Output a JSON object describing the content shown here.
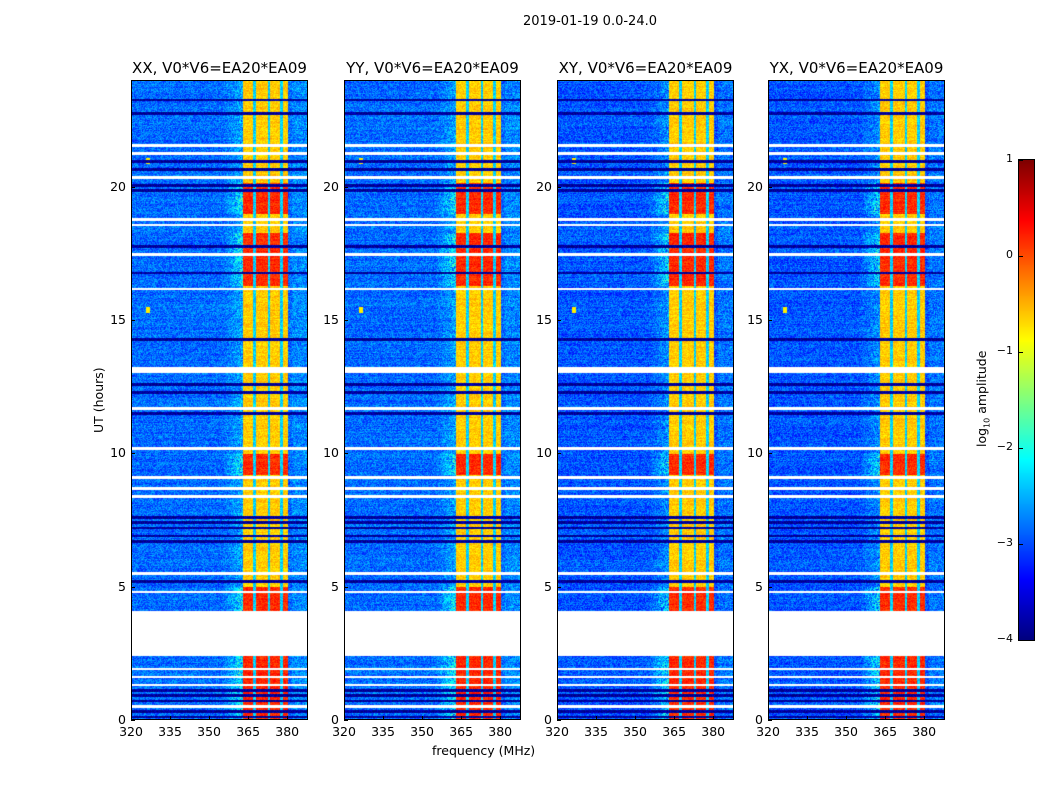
{
  "chart_data": {
    "type": "heatmap",
    "title": "2019-01-19 0.0-24.0",
    "xlabel": "frequency (MHz)",
    "ylabel": "UT (hours)",
    "xlim": [
      320,
      388
    ],
    "ylim": [
      0,
      24
    ],
    "xticks": [
      320,
      335,
      350,
      365,
      380
    ],
    "yticks": [
      0,
      5,
      10,
      15,
      20
    ],
    "panels": [
      {
        "title": "XX, V0*V6=EA20*EA09",
        "cross": false
      },
      {
        "title": "YY, V0*V6=EA20*EA09",
        "cross": false
      },
      {
        "title": "XY, V0*V6=EA20*EA09",
        "cross": true
      },
      {
        "title": "YX, V0*V6=EA20*EA09",
        "cross": true
      }
    ],
    "colorbar": {
      "label": "log10 amplitude",
      "colormap": "jet",
      "range": [
        -4,
        1
      ],
      "ticks": [
        "1",
        "0",
        "−1",
        "−2",
        "−3",
        "−4"
      ],
      "tick_values": [
        1,
        0,
        -1,
        -2,
        -3,
        -4
      ]
    },
    "features": {
      "bright_band_mhz": [
        363,
        380.5
      ],
      "band_notches_mhz": [
        367.5,
        373,
        378
      ],
      "no_data_hours": [
        [
          2.4,
          4.1
        ]
      ],
      "flagged_hours": [
        21.6,
        21.3,
        20.4,
        18.8,
        18.6,
        17.5,
        16.2,
        13.2,
        13.1,
        11.7,
        10.2,
        9.1,
        8.7,
        8.4,
        5.5,
        4.8,
        1.9,
        1.6,
        1.3,
        0.5
      ],
      "dark_row_hours": [
        23.3,
        22.8,
        21.0,
        20.7,
        20.1,
        19.9,
        17.8,
        16.8,
        14.3,
        12.6,
        12.3,
        11.5,
        7.6,
        7.4,
        7.2,
        6.9,
        6.7,
        5.2,
        1.1,
        0.9,
        0.7,
        0.3,
        0.1
      ],
      "bright_hours": [
        [
          19,
          20.2
        ],
        [
          16.3,
          18.3
        ],
        [
          9.2,
          10.0
        ],
        [
          4.1,
          5.0
        ],
        [
          0,
          2.4
        ]
      ],
      "rfi_hours": [
        15.4,
        21.0
      ],
      "rfi_mhz": 326
    }
  }
}
